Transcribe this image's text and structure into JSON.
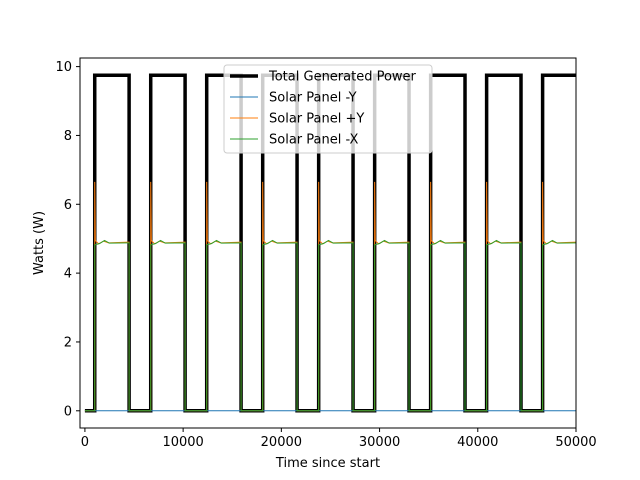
{
  "chart_data": {
    "type": "line",
    "title": "",
    "xlabel": "Time since start",
    "ylabel": "Watts (W)",
    "xlim": [
      -500,
      50000
    ],
    "ylim": [
      -0.5,
      10.25
    ],
    "xticks": [
      0,
      10000,
      20000,
      30000,
      40000,
      50000
    ],
    "yticks": [
      0,
      2,
      4,
      6,
      8,
      10
    ],
    "grid": false,
    "legend_position": "top-center",
    "sunlit_intervals": [
      [
        1000,
        4500
      ],
      [
        6700,
        10200
      ],
      [
        12400,
        15900
      ],
      [
        18100,
        21600
      ],
      [
        23800,
        27300
      ],
      [
        29500,
        33000
      ],
      [
        35200,
        38700
      ],
      [
        40900,
        44400
      ],
      [
        46600,
        50000
      ]
    ],
    "series": [
      {
        "name": "Total Generated Power",
        "color": "#000000",
        "line_width": 3.5,
        "sunlit_value": 9.75,
        "eclipse_value": 0.0
      },
      {
        "name": "Solar Panel -Y",
        "color": "#1f77b4",
        "line_width": 1,
        "sunlit_value": 0.0,
        "eclipse_value": 0.0
      },
      {
        "name": "Solar Panel +Y",
        "color": "#ff7f0e",
        "line_width": 1,
        "sunlit_value": 4.9,
        "spike_value": 6.65,
        "eclipse_value": 0.0
      },
      {
        "name": "Solar Panel -X",
        "color": "#2ca02c",
        "line_width": 1,
        "sunlit_value": 4.88,
        "start_value": 4.82,
        "eclipse_value": 0.0
      }
    ]
  }
}
